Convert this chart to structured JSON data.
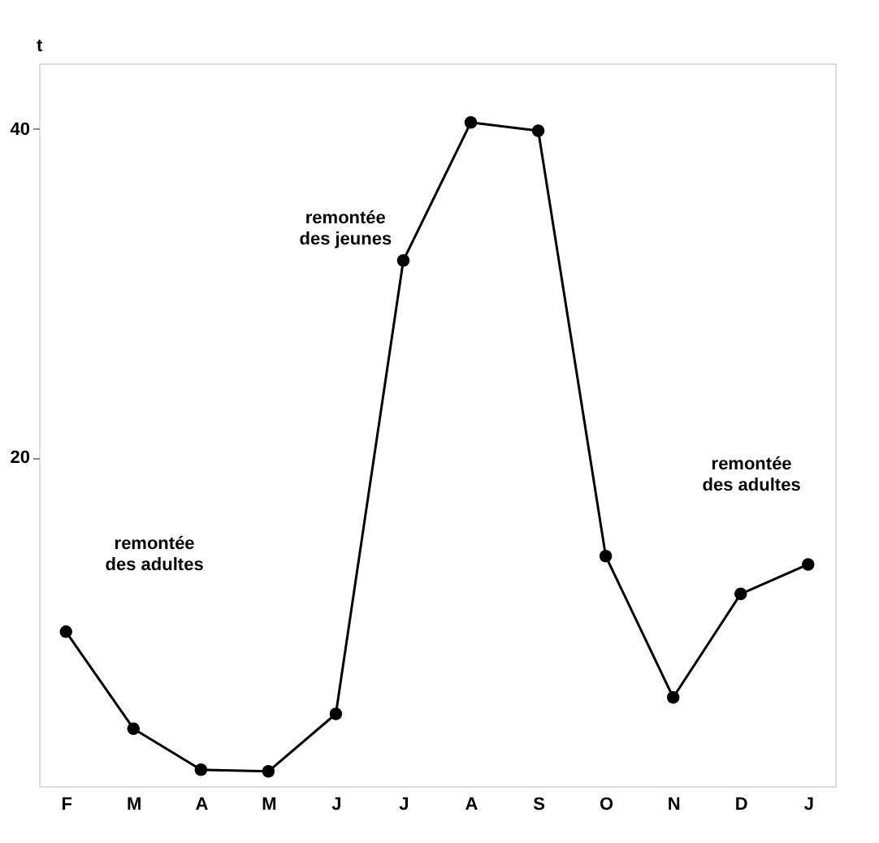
{
  "chart_data": {
    "type": "line",
    "ylabel": "t",
    "categories": [
      "F",
      "M",
      "A",
      "M",
      "J",
      "J",
      "A",
      "S",
      "O",
      "N",
      "D",
      "J"
    ],
    "series": [
      {
        "color": "#000000",
        "values": [
          9.4,
          3.5,
          1.0,
          0.9,
          4.4,
          32.0,
          40.4,
          39.9,
          14.0,
          5.4,
          11.7,
          13.5
        ]
      }
    ],
    "ylim": [
      0,
      44
    ],
    "yticks": [
      20,
      40
    ],
    "grid": false,
    "marker": "circle",
    "line_style": "solid",
    "annotations": [
      "remontée\ndes adultes",
      "remontée\ndes jeunes",
      "remontée\ndes adultes"
    ]
  }
}
